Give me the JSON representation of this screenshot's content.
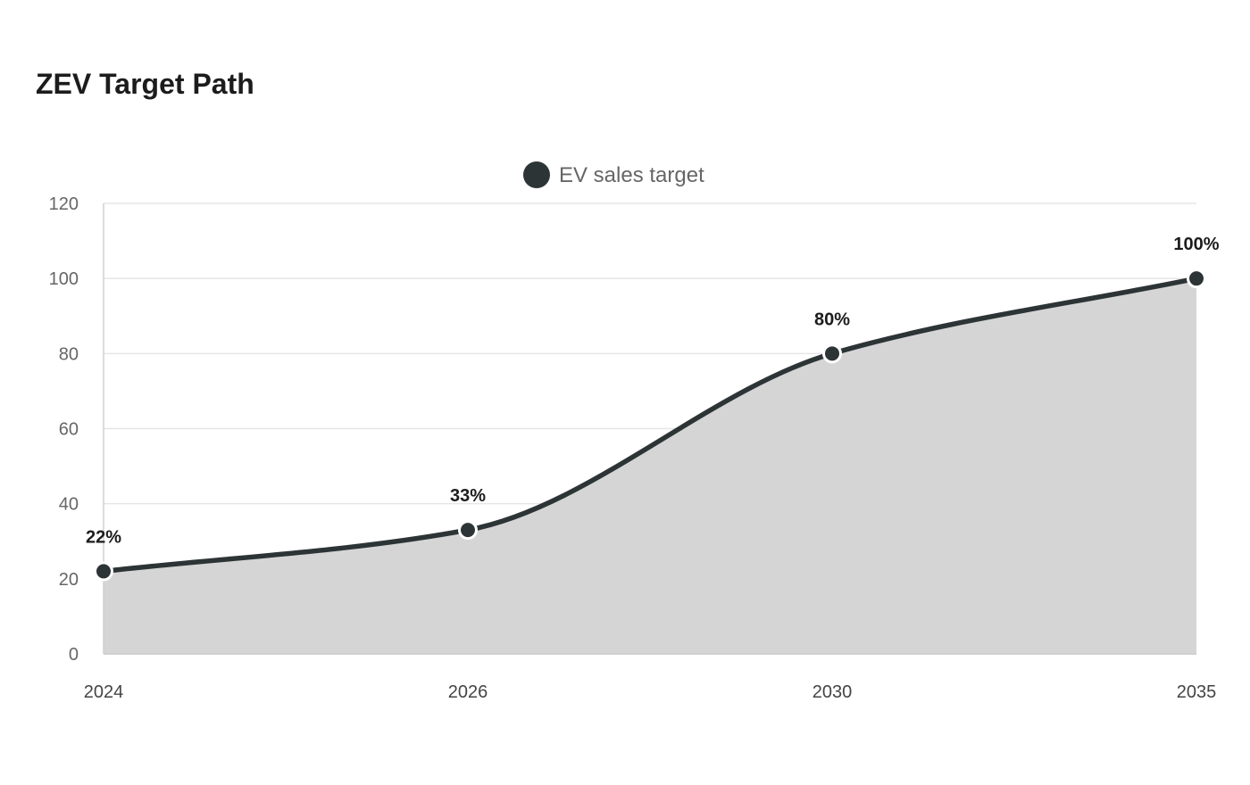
{
  "chart_data": {
    "type": "area",
    "title": "ZEV Target Path",
    "categories": [
      "2024",
      "2026",
      "2030",
      "2035"
    ],
    "series": [
      {
        "name": "EV sales target",
        "values": [
          22,
          33,
          80,
          100
        ],
        "data_labels": [
          "22%",
          "33%",
          "80%",
          "100%"
        ],
        "line_color": "#2d3436",
        "fill_color": "#d5d5d5"
      }
    ],
    "ylim": [
      0,
      120
    ],
    "yticks": [
      "0",
      "20",
      "40",
      "60",
      "80",
      "100",
      "120"
    ],
    "grid": true,
    "legend_position": "top-center"
  }
}
